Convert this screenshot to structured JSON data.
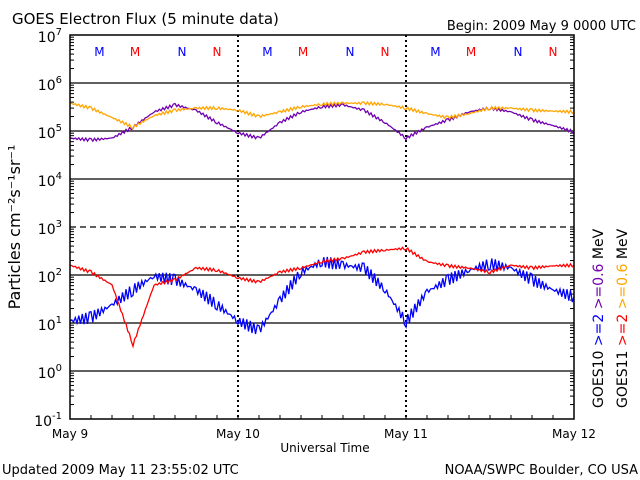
{
  "chart_data": {
    "type": "line",
    "title": "GOES Electron Flux (5 minute data)",
    "begin": "Begin: 2009 May 9 0000 UTC",
    "xlabel": "Universal Time",
    "ylabel": "Particles cm⁻²s⁻¹sr⁻¹",
    "x_unit": "hours since 2009 May 9 0000 UTC",
    "xlim": [
      0,
      72
    ],
    "ylim": [
      0.1,
      10000000
    ],
    "yscale": "log",
    "x_ticks": [
      {
        "hour": 0,
        "label": "May 9"
      },
      {
        "hour": 24,
        "label": "May 10"
      },
      {
        "hour": 48,
        "label": "May 11"
      },
      {
        "hour": 72,
        "label": "May 12"
      }
    ],
    "y_ticks": [
      {
        "base": "10",
        "exp": "7",
        "value": 10000000
      },
      {
        "base": "10",
        "exp": "6",
        "value": 1000000
      },
      {
        "base": "10",
        "exp": "5",
        "value": 100000
      },
      {
        "base": "10",
        "exp": "4",
        "value": 10000
      },
      {
        "base": "10",
        "exp": "3",
        "value": 1000
      },
      {
        "base": "10",
        "exp": "2",
        "value": 100
      },
      {
        "base": "10",
        "exp": "1",
        "value": 10
      },
      {
        "base": "10",
        "exp": "0",
        "value": 1
      },
      {
        "base": "10",
        "exp": "-1",
        "value": 0.1
      }
    ],
    "markers": [
      {
        "label": "M",
        "hour": 4.2,
        "color": "#0000ff"
      },
      {
        "label": "M",
        "hour": 9.3,
        "color": "#ff0000"
      },
      {
        "label": "N",
        "hour": 16,
        "color": "#0000ff"
      },
      {
        "label": "N",
        "hour": 21,
        "color": "#ff0000"
      },
      {
        "label": "M",
        "hour": 28.2,
        "color": "#0000ff"
      },
      {
        "label": "M",
        "hour": 33.3,
        "color": "#ff0000"
      },
      {
        "label": "N",
        "hour": 40,
        "color": "#0000ff"
      },
      {
        "label": "N",
        "hour": 45,
        "color": "#ff0000"
      },
      {
        "label": "M",
        "hour": 52.2,
        "color": "#0000ff"
      },
      {
        "label": "M",
        "hour": 57.3,
        "color": "#ff0000"
      },
      {
        "label": "N",
        "hour": 64,
        "color": "#0000ff"
      },
      {
        "label": "N",
        "hour": 69,
        "color": "#ff0000"
      }
    ],
    "x": [
      0,
      3,
      6,
      9,
      12,
      15,
      18,
      21,
      24,
      27,
      30,
      33,
      36,
      39,
      42,
      45,
      48,
      51,
      54,
      57,
      60,
      63,
      66,
      69,
      72
    ],
    "series": [
      {
        "name": "GOES10 >=0.6 MeV",
        "satellite": "GOES10",
        "energy": ">=0.6",
        "color": "#7000b0",
        "values": [
          71000,
          65000,
          71000,
          120000,
          250000,
          350000,
          270000,
          150000,
          91000,
          71000,
          150000,
          250000,
          320000,
          350000,
          270000,
          150000,
          71000,
          120000,
          170000,
          250000,
          300000,
          250000,
          170000,
          130000,
          95000
        ]
      },
      {
        "name": "GOES11 >=0.6 MeV",
        "satellite": "GOES11",
        "energy": ">=0.6",
        "color": "#ffa500",
        "values": [
          380000,
          300000,
          190000,
          120000,
          210000,
          270000,
          300000,
          300000,
          270000,
          200000,
          250000,
          320000,
          360000,
          380000,
          380000,
          360000,
          300000,
          230000,
          190000,
          230000,
          300000,
          300000,
          270000,
          260000,
          250000
        ]
      },
      {
        "name": "GOES10 >=2 MeV",
        "satellite": "GOES10",
        "energy": ">=2",
        "color": "#0000ff",
        "values": [
          11,
          13,
          24,
          49,
          95,
          79,
          49,
          24,
          11,
          7,
          30,
          115,
          190,
          160,
          140,
          49,
          10.5,
          45,
          79,
          126,
          170,
          140,
          79,
          49,
          35
        ]
      },
      {
        "name": "GOES11 >=2 MeV",
        "satellite": "GOES11",
        "energy": ">=2",
        "color": "#ff0000",
        "values": [
          160,
          115,
          62,
          3.5,
          62,
          79,
          140,
          126,
          87,
          71,
          115,
          140,
          190,
          220,
          300,
          330,
          360,
          190,
          155,
          140,
          115,
          160,
          140,
          155,
          160
        ]
      }
    ],
    "unit_label": "MeV",
    "legend_placement": "right",
    "grid": true
  },
  "footer": {
    "updated": "Updated 2009 May 11 23:55:02 UTC",
    "source": "NOAA/SWPC Boulder, CO USA"
  }
}
